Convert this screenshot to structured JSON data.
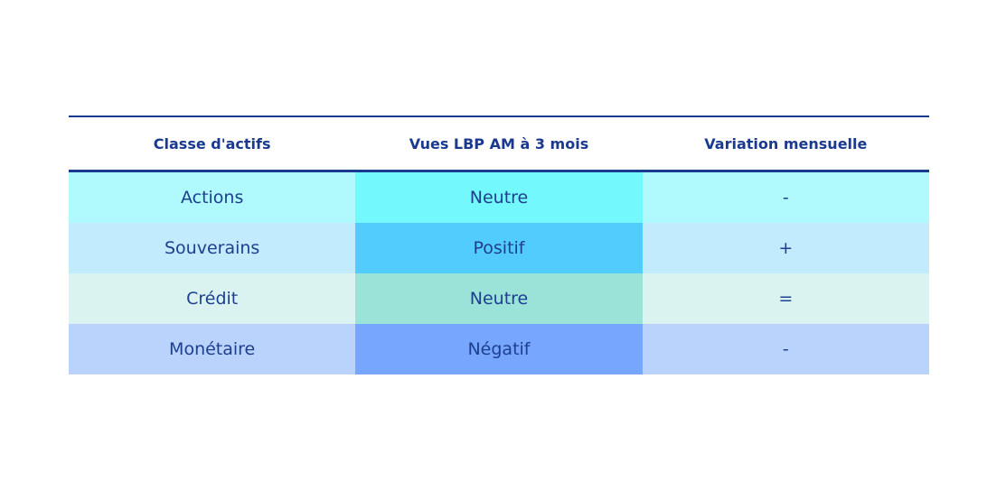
{
  "table": {
    "header": [
      "Classe d'actifs",
      "Vues LBP AM à 3 mois",
      "Variation mensuelle"
    ],
    "rows": [
      [
        "Actions",
        "Neutre",
        "-"
      ],
      [
        "Souverains",
        "Positif",
        "+"
      ],
      [
        "Crédit",
        "Neutre",
        "="
      ],
      [
        "Monétaire",
        "Négatif",
        "-"
      ]
    ]
  }
}
